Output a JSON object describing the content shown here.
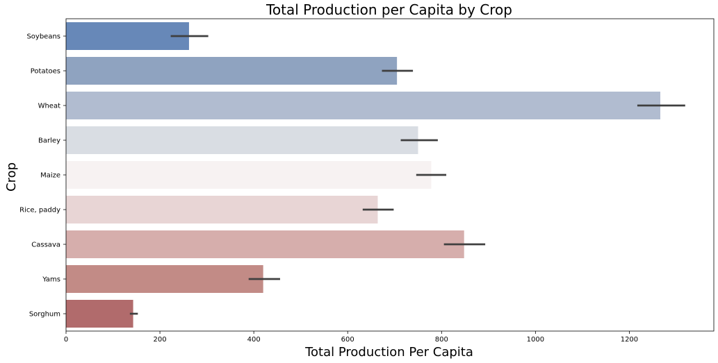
{
  "chart_data": {
    "type": "bar",
    "orientation": "horizontal",
    "title": "Total Production per Capita by Crop",
    "xlabel": "Total Production Per Capita",
    "ylabel": "Crop",
    "xlim": [
      0,
      1380
    ],
    "xticks": [
      0,
      200,
      400,
      600,
      800,
      1000,
      1200
    ],
    "grid": false,
    "categories": [
      "Soybeans",
      "Potatoes",
      "Wheat",
      "Barley",
      "Maize",
      "Rice, paddy",
      "Cassava",
      "Yams",
      "Sorghum"
    ],
    "values": [
      262,
      705,
      1266,
      750,
      778,
      664,
      848,
      420,
      143
    ],
    "error_low": [
      223,
      673,
      1217,
      713,
      746,
      632,
      805,
      389,
      136
    ],
    "error_high": [
      303,
      739,
      1319,
      792,
      810,
      698,
      893,
      456,
      153
    ],
    "colors": [
      "#6788b8",
      "#8fa3c0",
      "#b1bcd0",
      "#d9dde3",
      "#f7f2f2",
      "#e8d5d5",
      "#d6aeac",
      "#c28b86",
      "#b16b6c"
    ]
  }
}
